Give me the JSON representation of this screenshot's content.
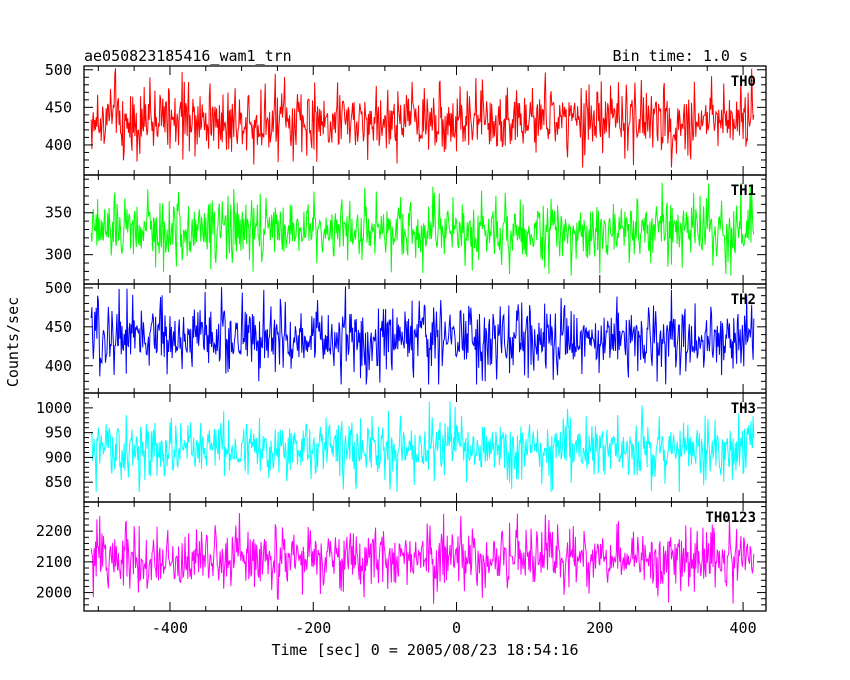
{
  "header": {
    "left_title": "ae050823185416_wam1_trn",
    "right_title": "Bin time: 1.0 s"
  },
  "chart_data": {
    "type": "line",
    "title": "ae050823185416_wam1_trn",
    "subtitle": "Bin time: 1.0 s",
    "xlabel": "Time [sec] 0 = 2005/08/23 18:54:16",
    "ylabel": "Counts/sec",
    "xlim": [
      -520,
      432
    ],
    "x_ticks": [
      -400,
      -200,
      0,
      200,
      400
    ],
    "x_range": [
      -510,
      415
    ],
    "bin_time_s": 1.0,
    "panels": [
      {
        "name": "TH0",
        "color": "#ff0000",
        "ylim": [
          360,
          505
        ],
        "y_ticks": [
          400,
          450,
          500
        ],
        "mean": 433,
        "noise_sd": 22,
        "min": 370,
        "max": 502
      },
      {
        "name": "TH1",
        "color": "#00ff00",
        "ylim": [
          265,
          395
        ],
        "y_ticks": [
          300,
          350
        ],
        "mean": 330,
        "noise_sd": 18,
        "min": 275,
        "max": 388
      },
      {
        "name": "TH2",
        "color": "#0000ff",
        "ylim": [
          365,
          505
        ],
        "y_ticks": [
          400,
          450,
          500
        ],
        "mean": 435,
        "noise_sd": 22,
        "min": 376,
        "max": 502
      },
      {
        "name": "TH3",
        "color": "#00ffff",
        "ylim": [
          810,
          1030
        ],
        "y_ticks": [
          850,
          900,
          950,
          1000
        ],
        "mean": 917,
        "noise_sd": 30,
        "min": 830,
        "max": 1025
      },
      {
        "name": "TH0123",
        "color": "#ff00ff",
        "ylim": [
          1940,
          2295
        ],
        "y_ticks": [
          2000,
          2100,
          2200
        ],
        "mean": 2112,
        "noise_sd": 48,
        "min": 1960,
        "max": 2290
      }
    ]
  }
}
